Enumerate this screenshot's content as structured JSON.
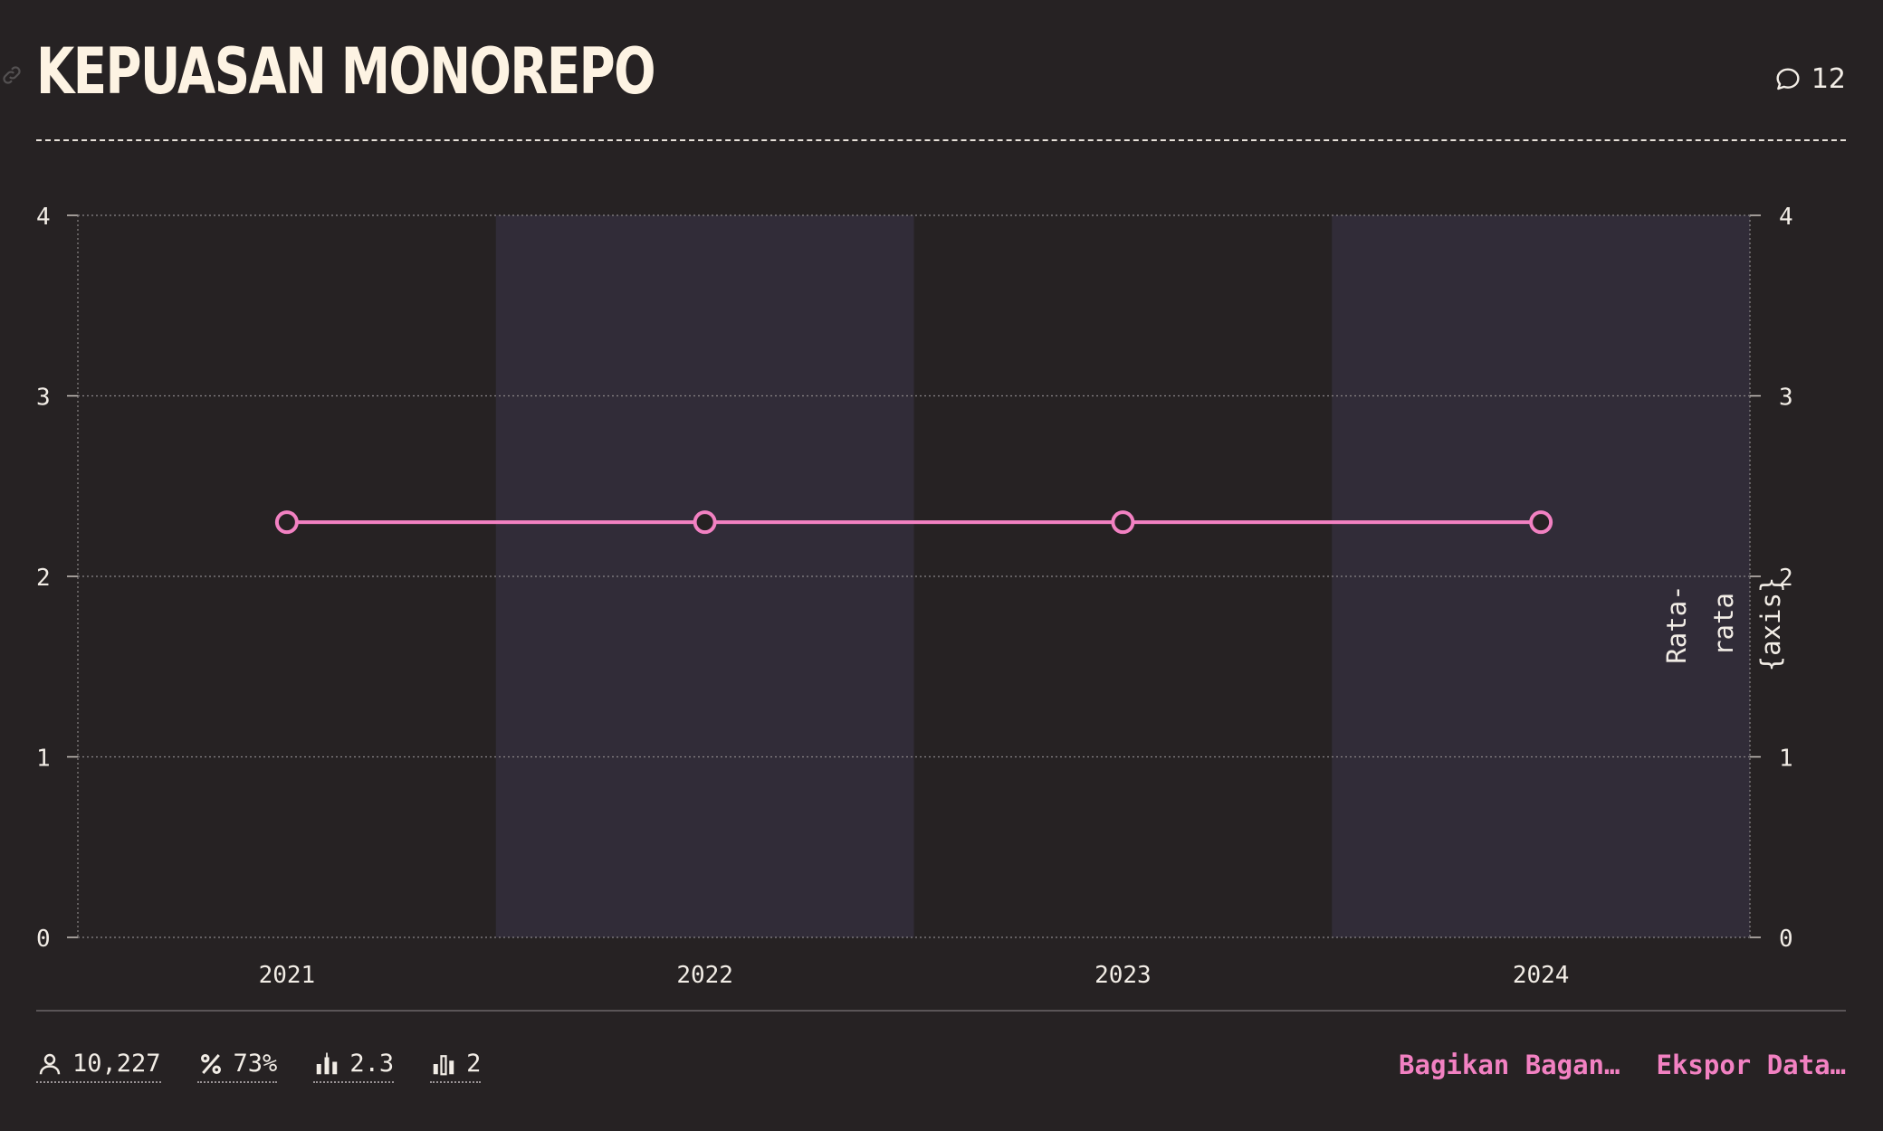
{
  "header": {
    "title": "KEPUASAN MONOREPO",
    "comment_count": "12"
  },
  "chart_data": {
    "type": "line",
    "categories": [
      "2021",
      "2022",
      "2023",
      "2024"
    ],
    "series": [
      {
        "name": "",
        "values": [
          2.3,
          2.3,
          2.3,
          2.3
        ],
        "color": "#f281c2"
      }
    ],
    "ylim": [
      0,
      4
    ],
    "yticks": [
      "0",
      "1",
      "2",
      "3",
      "4"
    ],
    "right_axis_label_lines": [
      "Rata-",
      "rata",
      "{axis}"
    ],
    "grid": true,
    "alternate_band_color": "#312c38",
    "title": "",
    "xlabel": ""
  },
  "footer": {
    "stats": [
      {
        "icon": "user-icon",
        "value": "10,227"
      },
      {
        "icon": "percent-icon",
        "value": "73%"
      },
      {
        "icon": "candlestick-icon",
        "value": "2.3"
      },
      {
        "icon": "bar-chart-icon",
        "value": "2"
      }
    ],
    "share_label": "Bagikan Bagan…",
    "export_label": "Ekspor Data…"
  },
  "colors": {
    "accent": "#f281c2",
    "background": "#262223",
    "title": "#fdf3e3"
  }
}
